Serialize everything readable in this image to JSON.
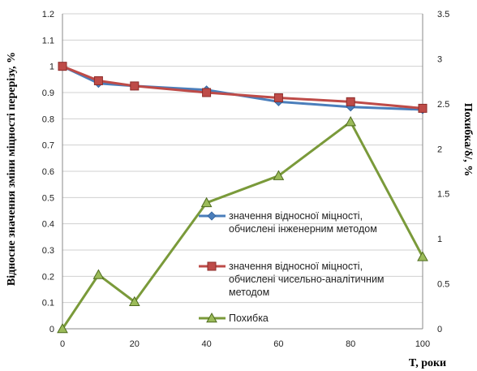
{
  "chart_data": {
    "type": "line",
    "x": [
      0,
      10,
      20,
      40,
      60,
      80,
      100
    ],
    "x_ticks": [
      "0",
      "20",
      "40",
      "60",
      "80",
      "100"
    ],
    "xlabel": "T, роки",
    "xlim": [
      0,
      100
    ],
    "ylabel_left": "Відносне значення зміни міцності перерізу, %",
    "ylim_left": [
      0,
      1.2
    ],
    "y_ticks_left": [
      "0",
      "0.1",
      "0.2",
      "0.3",
      "0.4",
      "0.5",
      "0.6",
      "0.7",
      "0.8",
      "0.9",
      "1",
      "1.1",
      "1.2"
    ],
    "ylabel_right": "Похибка/δ/, %",
    "ylim_right": [
      0,
      3.5
    ],
    "y_ticks_right": [
      "0",
      "0.5",
      "1",
      "1.5",
      "2",
      "2.5",
      "3",
      "3.5"
    ],
    "grid": "horizontal",
    "legend_position": "center-right",
    "series": [
      {
        "name_lines": [
          "значення відносної міцності,",
          "обчислені інженерним методом"
        ],
        "axis": "left",
        "color": "#4a7ebb",
        "marker": "diamond",
        "values": [
          1.0,
          0.935,
          0.925,
          0.91,
          0.865,
          0.845,
          0.835
        ]
      },
      {
        "name_lines": [
          "значення відносної міцності,",
          "обчислені чисельно-аналітичним",
          "методом"
        ],
        "axis": "left",
        "color": "#be4b48",
        "marker": "square",
        "values": [
          1.0,
          0.945,
          0.925,
          0.9,
          0.88,
          0.865,
          0.84
        ]
      },
      {
        "name_lines": [
          "Похибка"
        ],
        "axis": "right",
        "color": "#7a9a3a",
        "marker": "triangle",
        "values": [
          0,
          0.6,
          0.3,
          1.4,
          1.7,
          2.3,
          0.8
        ]
      }
    ]
  }
}
